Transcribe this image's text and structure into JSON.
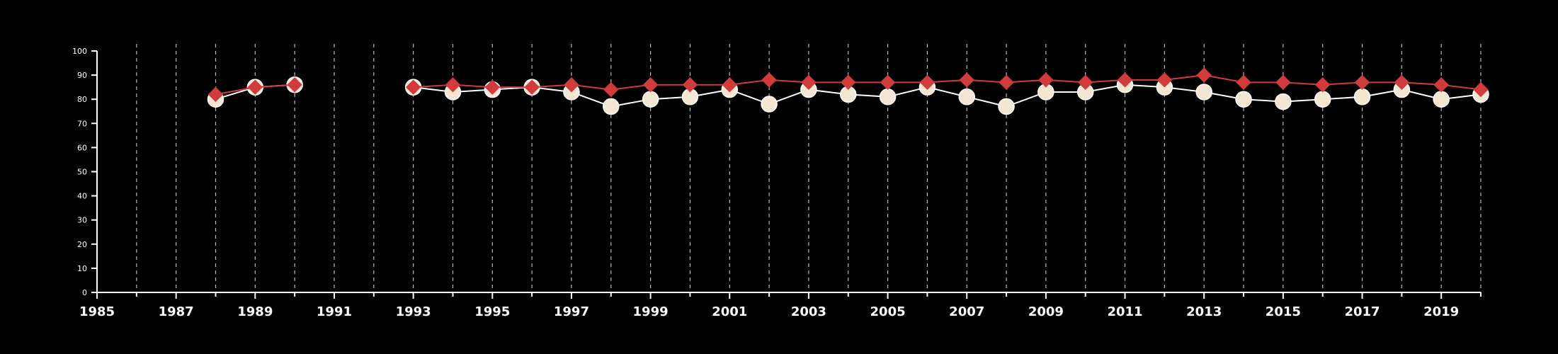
{
  "chart_data": {
    "type": "line",
    "title": "",
    "xlabel": "",
    "ylabel": "",
    "xlim": [
      1985,
      2020
    ],
    "ylim": [
      0,
      100
    ],
    "y_ticks": [
      0,
      10,
      20,
      30,
      40,
      50,
      60,
      70,
      80,
      90,
      100
    ],
    "x_ticks": [
      1985,
      1987,
      1989,
      1991,
      1993,
      1995,
      1997,
      1999,
      2001,
      2003,
      2005,
      2007,
      2009,
      2011,
      2013,
      2015,
      2017,
      2019
    ],
    "x_tick_labels": [
      "1985",
      "1987",
      "1989",
      "1991",
      "1993",
      "1995",
      "1997",
      "1999",
      "2001",
      "2003",
      "2005",
      "2007",
      "2009",
      "2011",
      "2013",
      "2015",
      "2017",
      "2019"
    ],
    "y_tick_labels": [
      "0",
      "10",
      "20",
      "30",
      "40",
      "50",
      "60",
      "70",
      "80",
      "90",
      "100"
    ],
    "grid": "vertical dashed lines at every year",
    "background": "#000000",
    "series": [
      {
        "marker": "circle",
        "color": "#ffffff",
        "marker_fill": "#f5e6d3",
        "x": [
          1988,
          1989,
          1990,
          1993,
          1994,
          1995,
          1996,
          1997,
          1998,
          1999,
          2000,
          2001,
          2002,
          2003,
          2004,
          2005,
          2006,
          2007,
          2008,
          2009,
          2010,
          2011,
          2012,
          2013,
          2014,
          2015,
          2016,
          2017,
          2018,
          2019,
          2020
        ],
        "values": [
          80,
          85,
          86,
          85,
          83,
          84,
          85,
          83,
          77,
          80,
          81,
          84,
          78,
          84,
          82,
          81,
          85,
          81,
          77,
          83,
          83,
          86,
          85,
          83,
          80,
          79,
          80,
          81,
          84,
          80,
          82
        ]
      },
      {
        "marker": "diamond",
        "color": "#d23b3b",
        "marker_fill": "#d23b3b",
        "x": [
          1988,
          1989,
          1990,
          1993,
          1994,
          1995,
          1996,
          1997,
          1998,
          1999,
          2000,
          2001,
          2002,
          2003,
          2004,
          2005,
          2006,
          2007,
          2008,
          2009,
          2010,
          2011,
          2012,
          2013,
          2014,
          2015,
          2016,
          2017,
          2018,
          2019,
          2020
        ],
        "values": [
          82,
          85,
          86,
          85,
          86,
          85,
          85,
          86,
          84,
          86,
          86,
          86,
          88,
          87,
          87,
          87,
          87,
          88,
          87,
          88,
          87,
          88,
          88,
          90,
          87,
          87,
          86,
          87,
          87,
          86,
          84
        ]
      }
    ]
  }
}
